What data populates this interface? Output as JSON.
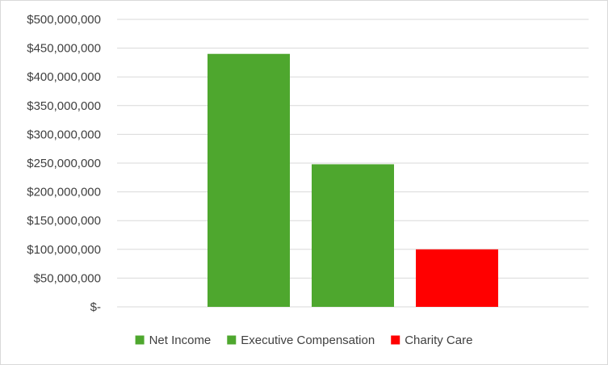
{
  "chart_data": {
    "type": "bar",
    "title": "",
    "xlabel": "",
    "ylabel": "",
    "ylim": [
      0,
      500000000
    ],
    "ytick_step": 50000000,
    "ytick_labels": [
      "$-",
      "$50,000,000",
      "$100,000,000",
      "$150,000,000",
      "$200,000,000",
      "$250,000,000",
      "$300,000,000",
      "$350,000,000",
      "$400,000,000",
      "$450,000,000",
      "$500,000,000"
    ],
    "grid": true,
    "legend_position": "bottom",
    "series": [
      {
        "name": "Net Income",
        "value": 440000000,
        "color": "#4ea72e"
      },
      {
        "name": "Executive Compensation",
        "value": 248000000,
        "color": "#4ea72e"
      },
      {
        "name": "Charity Care",
        "value": 100000000,
        "color": "#ff0000"
      }
    ]
  }
}
